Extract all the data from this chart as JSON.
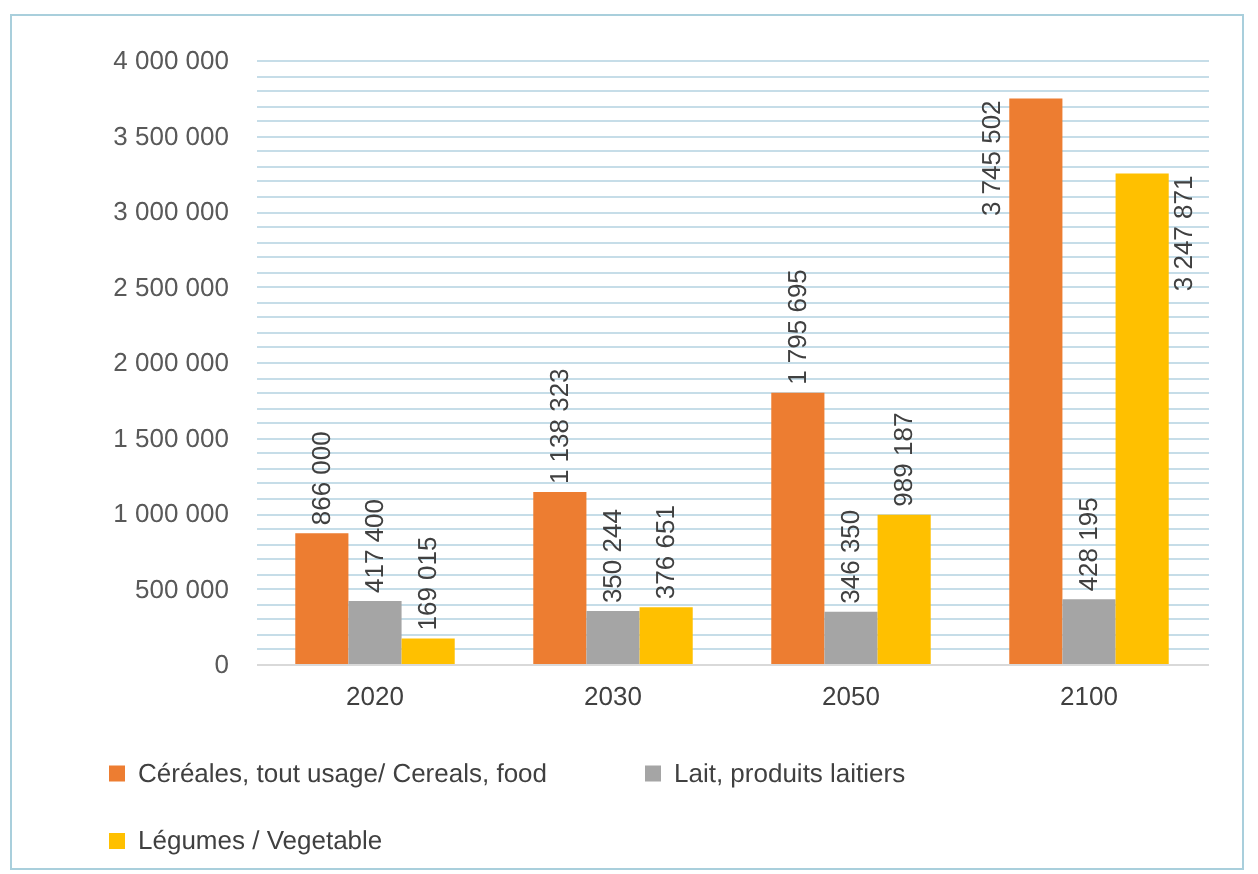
{
  "chart_data": {
    "type": "bar",
    "categories": [
      "2020",
      "2030",
      "2050",
      "2100"
    ],
    "series": [
      {
        "name": "Céréales, tout usage/ Cereals, food",
        "color": "#ed7d31",
        "values": [
          866000,
          1138323,
          1795695,
          3745502
        ]
      },
      {
        "name": "Lait, produits laitiers",
        "color": "#a5a5a5",
        "values": [
          417400,
          350244,
          346350,
          428195
        ]
      },
      {
        "name": "Légumes / Vegetable",
        "color": "#ffc000",
        "values": [
          169015,
          376651,
          989187,
          3247871
        ]
      }
    ],
    "ylim": [
      0,
      4000000
    ],
    "yticks": [
      0,
      {
        "value": 100000,
        "label": null
      },
      {
        "value": 200000,
        "label": null
      },
      {
        "value": 300000,
        "label": null
      },
      {
        "value": 400000,
        "label": null
      },
      500000,
      {
        "value": 600000,
        "label": null
      },
      {
        "value": 700000,
        "label": null
      },
      {
        "value": 800000,
        "label": null
      },
      {
        "value": 900000,
        "label": null
      },
      1000000,
      {
        "value": 1100000,
        "label": null
      },
      {
        "value": 1200000,
        "label": null
      },
      {
        "value": 1300000,
        "label": null
      },
      {
        "value": 1400000,
        "label": null
      },
      1500000,
      {
        "value": 1600000,
        "label": null
      },
      {
        "value": 1700000,
        "label": null
      },
      {
        "value": 1800000,
        "label": null
      },
      {
        "value": 1900000,
        "label": null
      },
      2000000,
      {
        "value": 2100000,
        "label": null
      },
      {
        "value": 2200000,
        "label": null
      },
      {
        "value": 2300000,
        "label": null
      },
      {
        "value": 2400000,
        "label": null
      },
      2500000,
      {
        "value": 2600000,
        "label": null
      },
      {
        "value": 2700000,
        "label": null
      },
      {
        "value": 2800000,
        "label": null
      },
      {
        "value": 2900000,
        "label": null
      },
      3000000,
      {
        "value": 3100000,
        "label": null
      },
      {
        "value": 3200000,
        "label": null
      },
      {
        "value": 3300000,
        "label": null
      },
      {
        "value": 3400000,
        "label": null
      },
      3500000,
      {
        "value": 3600000,
        "label": null
      },
      {
        "value": 3700000,
        "label": null
      },
      {
        "value": 3800000,
        "label": null
      },
      {
        "value": 3900000,
        "label": null
      },
      4000000
    ],
    "grid": true,
    "legend": "bottom",
    "data_labels": true
  }
}
